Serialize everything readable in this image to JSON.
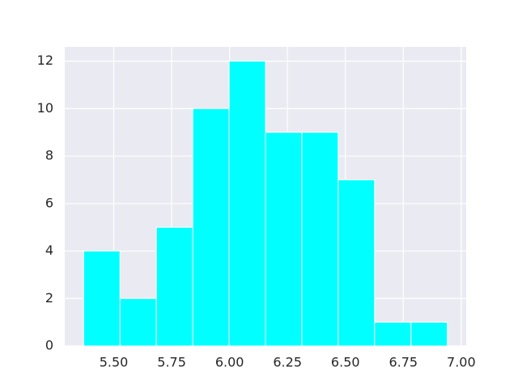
{
  "chart_data": {
    "type": "histogram",
    "bins": [
      5.37,
      5.527,
      5.684,
      5.841,
      5.998,
      6.155,
      6.312,
      6.469,
      6.626,
      6.783,
      6.94
    ],
    "values": [
      4,
      2,
      5,
      10,
      12,
      9,
      9,
      7,
      1,
      1
    ],
    "color": "#00ffff",
    "xlim": [
      5.2885,
      7.0215
    ],
    "ylim": [
      0,
      12.6
    ],
    "xticks": [
      {
        "value": 5.5,
        "label": "5.50"
      },
      5.75,
      {
        "value": 6.0,
        "label": "6.00"
      },
      6.25,
      {
        "value": 6.5,
        "label": "6.50"
      },
      6.75,
      {
        "value": 7.0,
        "label": "7.00"
      }
    ],
    "yticks": [
      0,
      2,
      4,
      6,
      8,
      10,
      12
    ],
    "grid": true
  }
}
